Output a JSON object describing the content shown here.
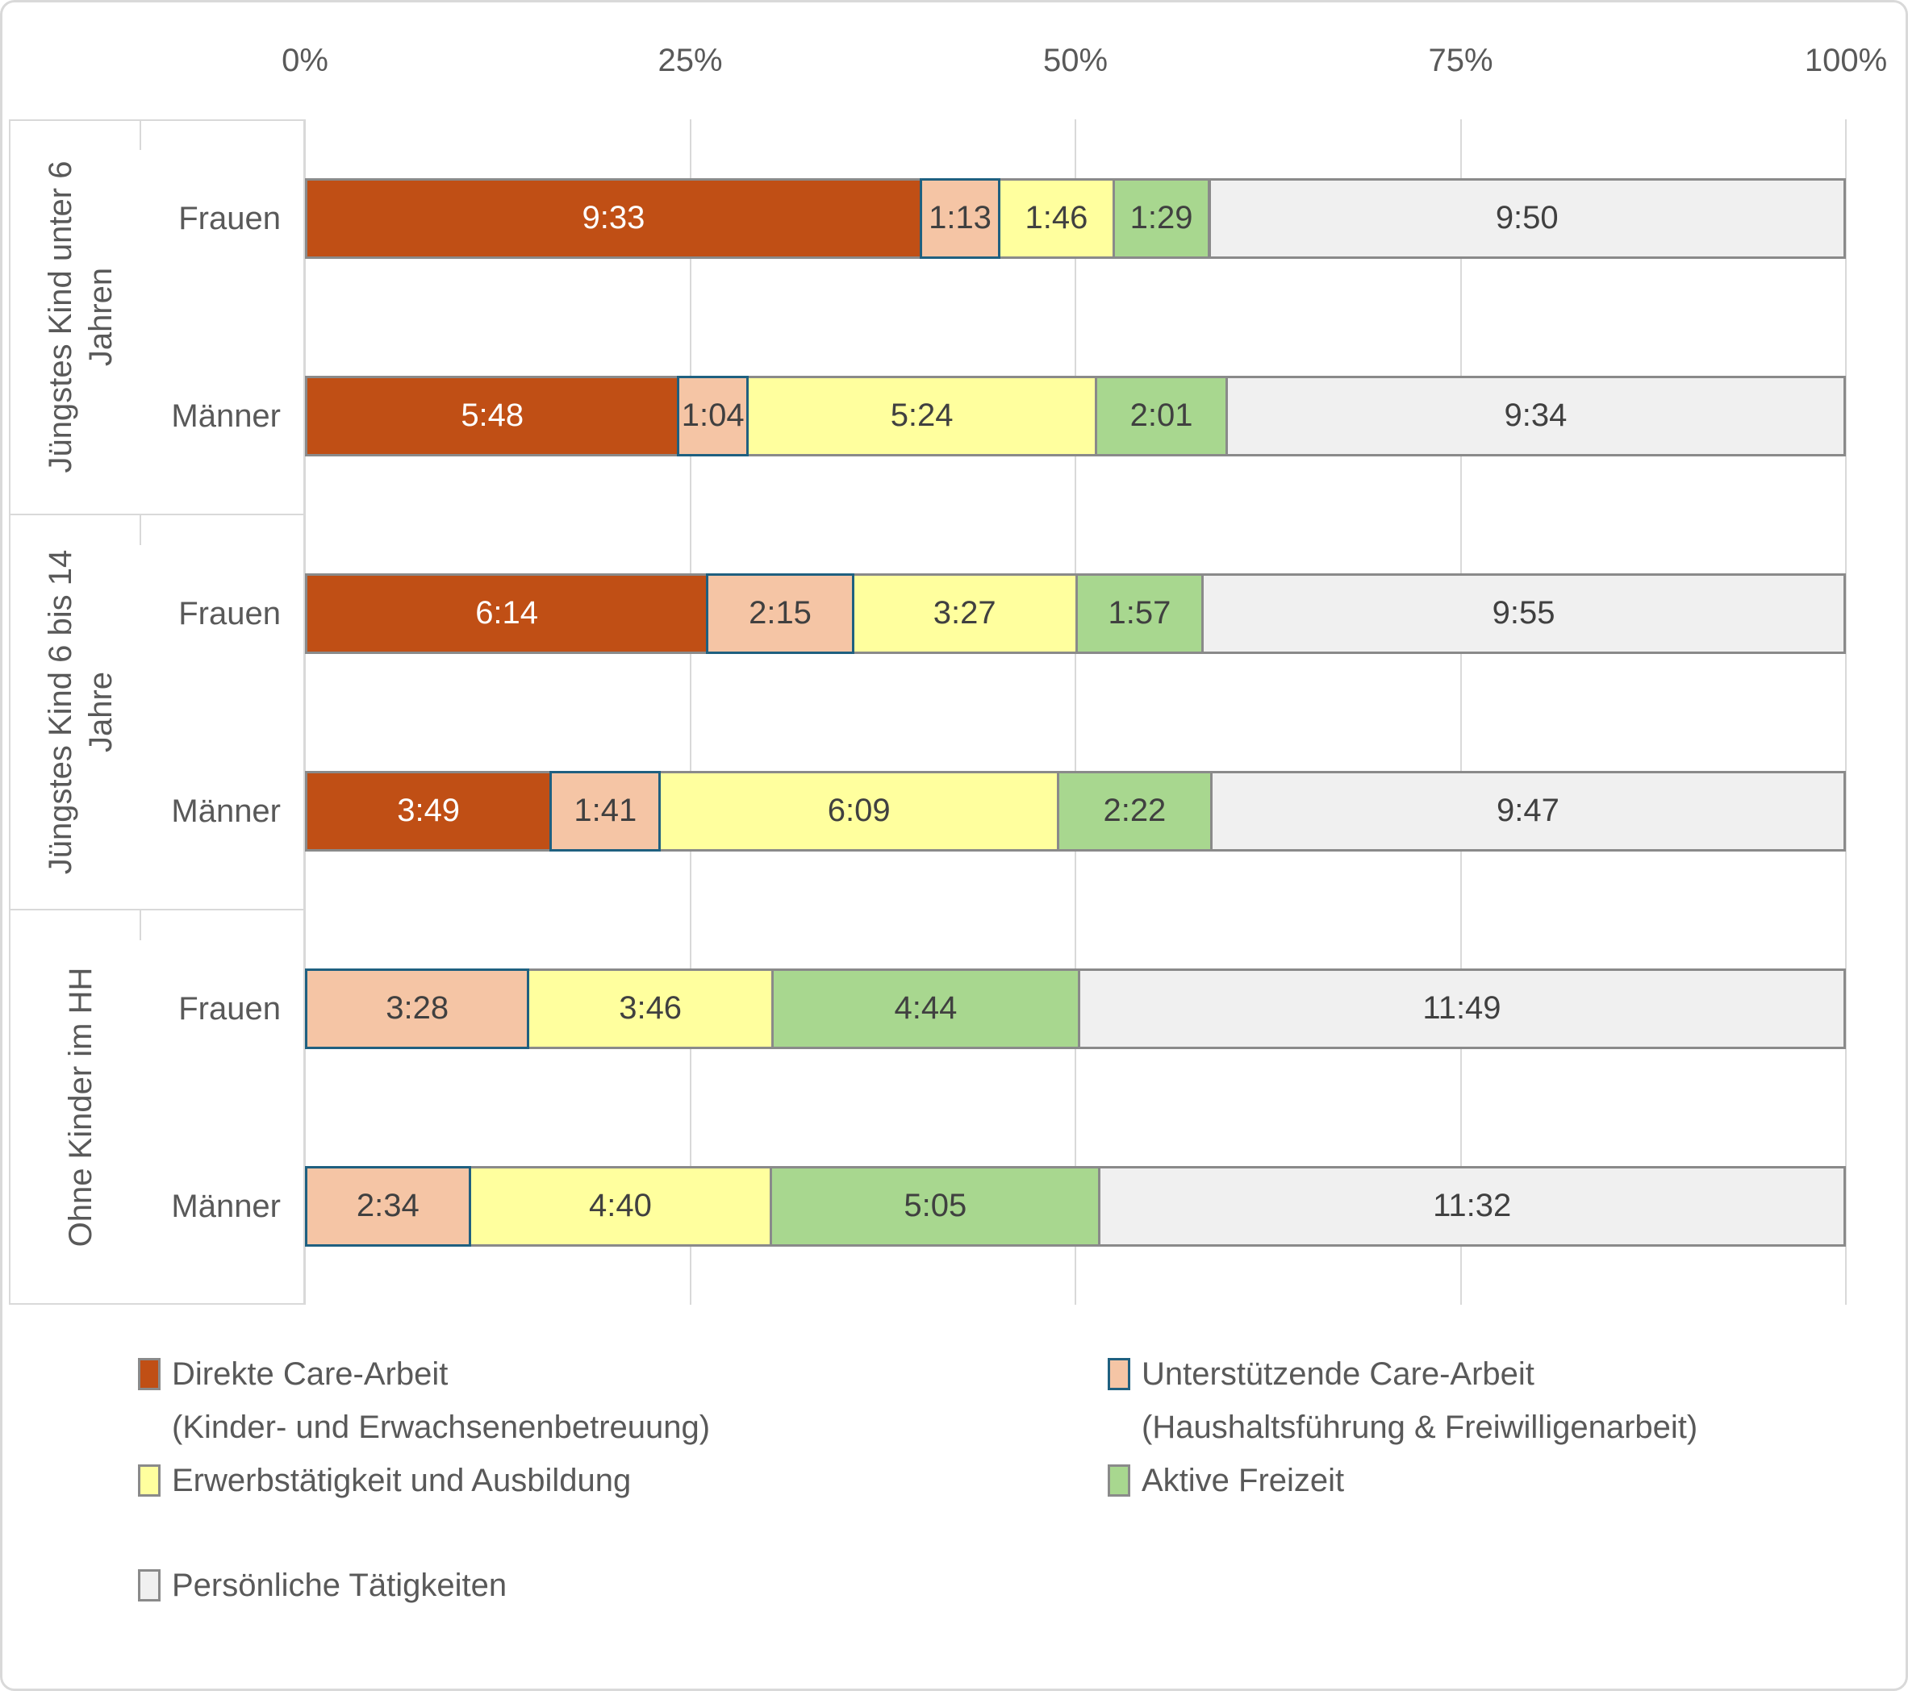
{
  "chart_data": {
    "type": "bar",
    "orientation": "horizontal",
    "stacked_percent": true,
    "note": "100% stacked horizontal bars; segment labels are durations h:mm per day, segment width = share of row total",
    "x_ticks": [
      "0%",
      "25%",
      "50%",
      "75%",
      "100%"
    ],
    "series_order": [
      "direkte_care",
      "unterstuetzende_care",
      "erwerb",
      "aktive_freizeit",
      "persoenlich"
    ],
    "series": {
      "direkte_care": {
        "name": "Direkte Care-Arbeit (Kinder- und Erwachsenenbetreuung)",
        "fill": "#C04F15",
        "border": "#8A8A8A",
        "label_color": "#FFFFFF"
      },
      "unterstuetzende_care": {
        "name": "Unterstützende Care-Arbeit (Haushaltsführung & Freiwilligenarbeit)",
        "fill": "#F5C5A5",
        "border": "#1F6080",
        "label_color": "#404040"
      },
      "erwerb": {
        "name": "Erwerbstätigkeit und Ausbildung",
        "fill": "#FFFF9E",
        "border": "#8A8A8A",
        "label_color": "#404040"
      },
      "aktive_freizeit": {
        "name": "Aktive Freizeit",
        "fill": "#A8D78F",
        "border": "#8A8A8A",
        "label_color": "#404040"
      },
      "persoenlich": {
        "name": "Persönliche Tätigkeiten",
        "fill": "#F0F0F0",
        "border": "#8A8A8A",
        "label_color": "#404040"
      }
    },
    "groups": [
      {
        "label_lines": [
          "Jüngstes Kind unter 6",
          "Jahren"
        ]
      },
      {
        "label_lines": [
          "Jüngstes Kind 6 bis 14",
          "Jahre"
        ]
      },
      {
        "label_lines": [
          "Ohne Kinder im HH"
        ]
      }
    ],
    "rows": [
      {
        "group": 0,
        "label": "Frauen",
        "values": {
          "direkte_care": "9:33",
          "unterstuetzende_care": "1:13",
          "erwerb": "1:46",
          "aktive_freizeit": "1:29",
          "persoenlich": "9:50"
        }
      },
      {
        "group": 0,
        "label": "Männer",
        "values": {
          "direkte_care": "5:48",
          "unterstuetzende_care": "1:04",
          "erwerb": "5:24",
          "aktive_freizeit": "2:01",
          "persoenlich": "9:34"
        }
      },
      {
        "group": 1,
        "label": "Frauen",
        "values": {
          "direkte_care": "6:14",
          "unterstuetzende_care": "2:15",
          "erwerb": "3:27",
          "aktive_freizeit": "1:57",
          "persoenlich": "9:55"
        }
      },
      {
        "group": 1,
        "label": "Männer",
        "values": {
          "direkte_care": "3:49",
          "unterstuetzende_care": "1:41",
          "erwerb": "6:09",
          "aktive_freizeit": "2:22",
          "persoenlich": "9:47"
        }
      },
      {
        "group": 2,
        "label": "Frauen",
        "values": {
          "unterstuetzende_care": "3:28",
          "erwerb": "3:46",
          "aktive_freizeit": "4:44",
          "persoenlich": "11:49"
        }
      },
      {
        "group": 2,
        "label": "Männer",
        "values": {
          "unterstuetzende_care": "2:34",
          "erwerb": "4:40",
          "aktive_freizeit": "5:05",
          "persoenlich": "11:32"
        }
      }
    ],
    "legend": {
      "position": "bottom",
      "items": [
        {
          "series": "direkte_care",
          "lines": [
            "Direkte Care-Arbeit",
            "(Kinder- und Erwachsenenbetreuung)"
          ],
          "col": 0,
          "row": 0
        },
        {
          "series": "unterstuetzende_care",
          "lines": [
            "Unterstützende Care-Arbeit",
            "(Haushaltsführung & Freiwilligenarbeit)"
          ],
          "col": 1,
          "row": 0
        },
        {
          "series": "erwerb",
          "lines": [
            "Erwerbstätigkeit und Ausbildung"
          ],
          "col": 0,
          "row": 1
        },
        {
          "series": "aktive_freizeit",
          "lines": [
            "Aktive Freizeit"
          ],
          "col": 1,
          "row": 1
        },
        {
          "series": "persoenlich",
          "lines": [
            "Persönliche Tätigkeiten"
          ],
          "col": 0,
          "row": 2
        }
      ]
    },
    "grid": true
  },
  "style": {
    "gridline_color": "#D9D9D9",
    "frame_color": "#D9D9D9",
    "axis_text_color": "#595959",
    "bar_label_color": "#404040",
    "bar_label_color_on_dark": "#FFFFFF"
  }
}
